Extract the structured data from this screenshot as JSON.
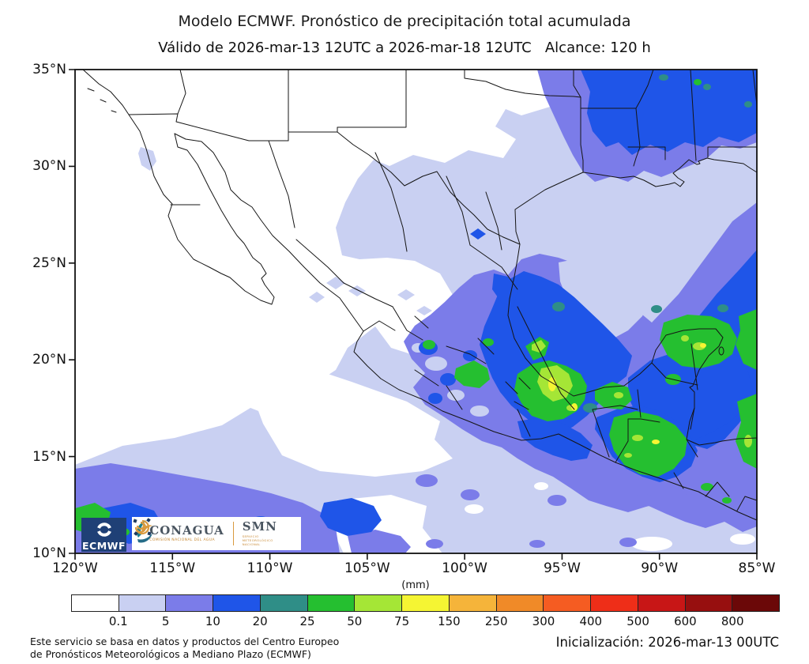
{
  "title": "Modelo ECMWF. Pronóstico de precipitación total acumulada",
  "subtitle": "Válido de 2026-mar-13 12UTC a 2026-mar-18 12UTC   Alcance: 120 h",
  "map": {
    "y_axis": [
      "35°N",
      "30°N",
      "25°N",
      "20°N",
      "15°N",
      "10°N"
    ],
    "x_axis": [
      "120°W",
      "115°W",
      "110°W",
      "105°W",
      "100°W",
      "95°W",
      "90°W",
      "85°W"
    ]
  },
  "logos": {
    "ecmwf_label": "ECMWF",
    "conagua_name": "CONAGUA",
    "conagua_sub": "COMISIÓN NACIONAL DEL AGUA",
    "smn_name": "SMN",
    "smn_sub": "SERVICIO METEOROLÓGICO NACIONAL"
  },
  "colorbar": {
    "unit": "(mm)",
    "ticks": [
      "0.1",
      "5",
      "10",
      "20",
      "25",
      "50",
      "75",
      "150",
      "250",
      "300",
      "400",
      "500",
      "600",
      "800"
    ],
    "colors": [
      "#ffffff",
      "#c9d0f2",
      "#7b7ce9",
      "#1f55e8",
      "#2f8e87",
      "#25bf30",
      "#a5e636",
      "#f5f533",
      "#f5b43a",
      "#f08a28",
      "#f55c22",
      "#ee2e18",
      "#c81616",
      "#970f0f",
      "#6b0808"
    ]
  },
  "footer": {
    "disclaimer_line1": "Este servicio se basa en datos y productos del Centro Europeo",
    "disclaimer_line2": "de Pronósticos Meteorológicos a Mediano Plazo (ECMWF)",
    "initialization": "Inicialización: 2026-mar-13 00UTC"
  }
}
